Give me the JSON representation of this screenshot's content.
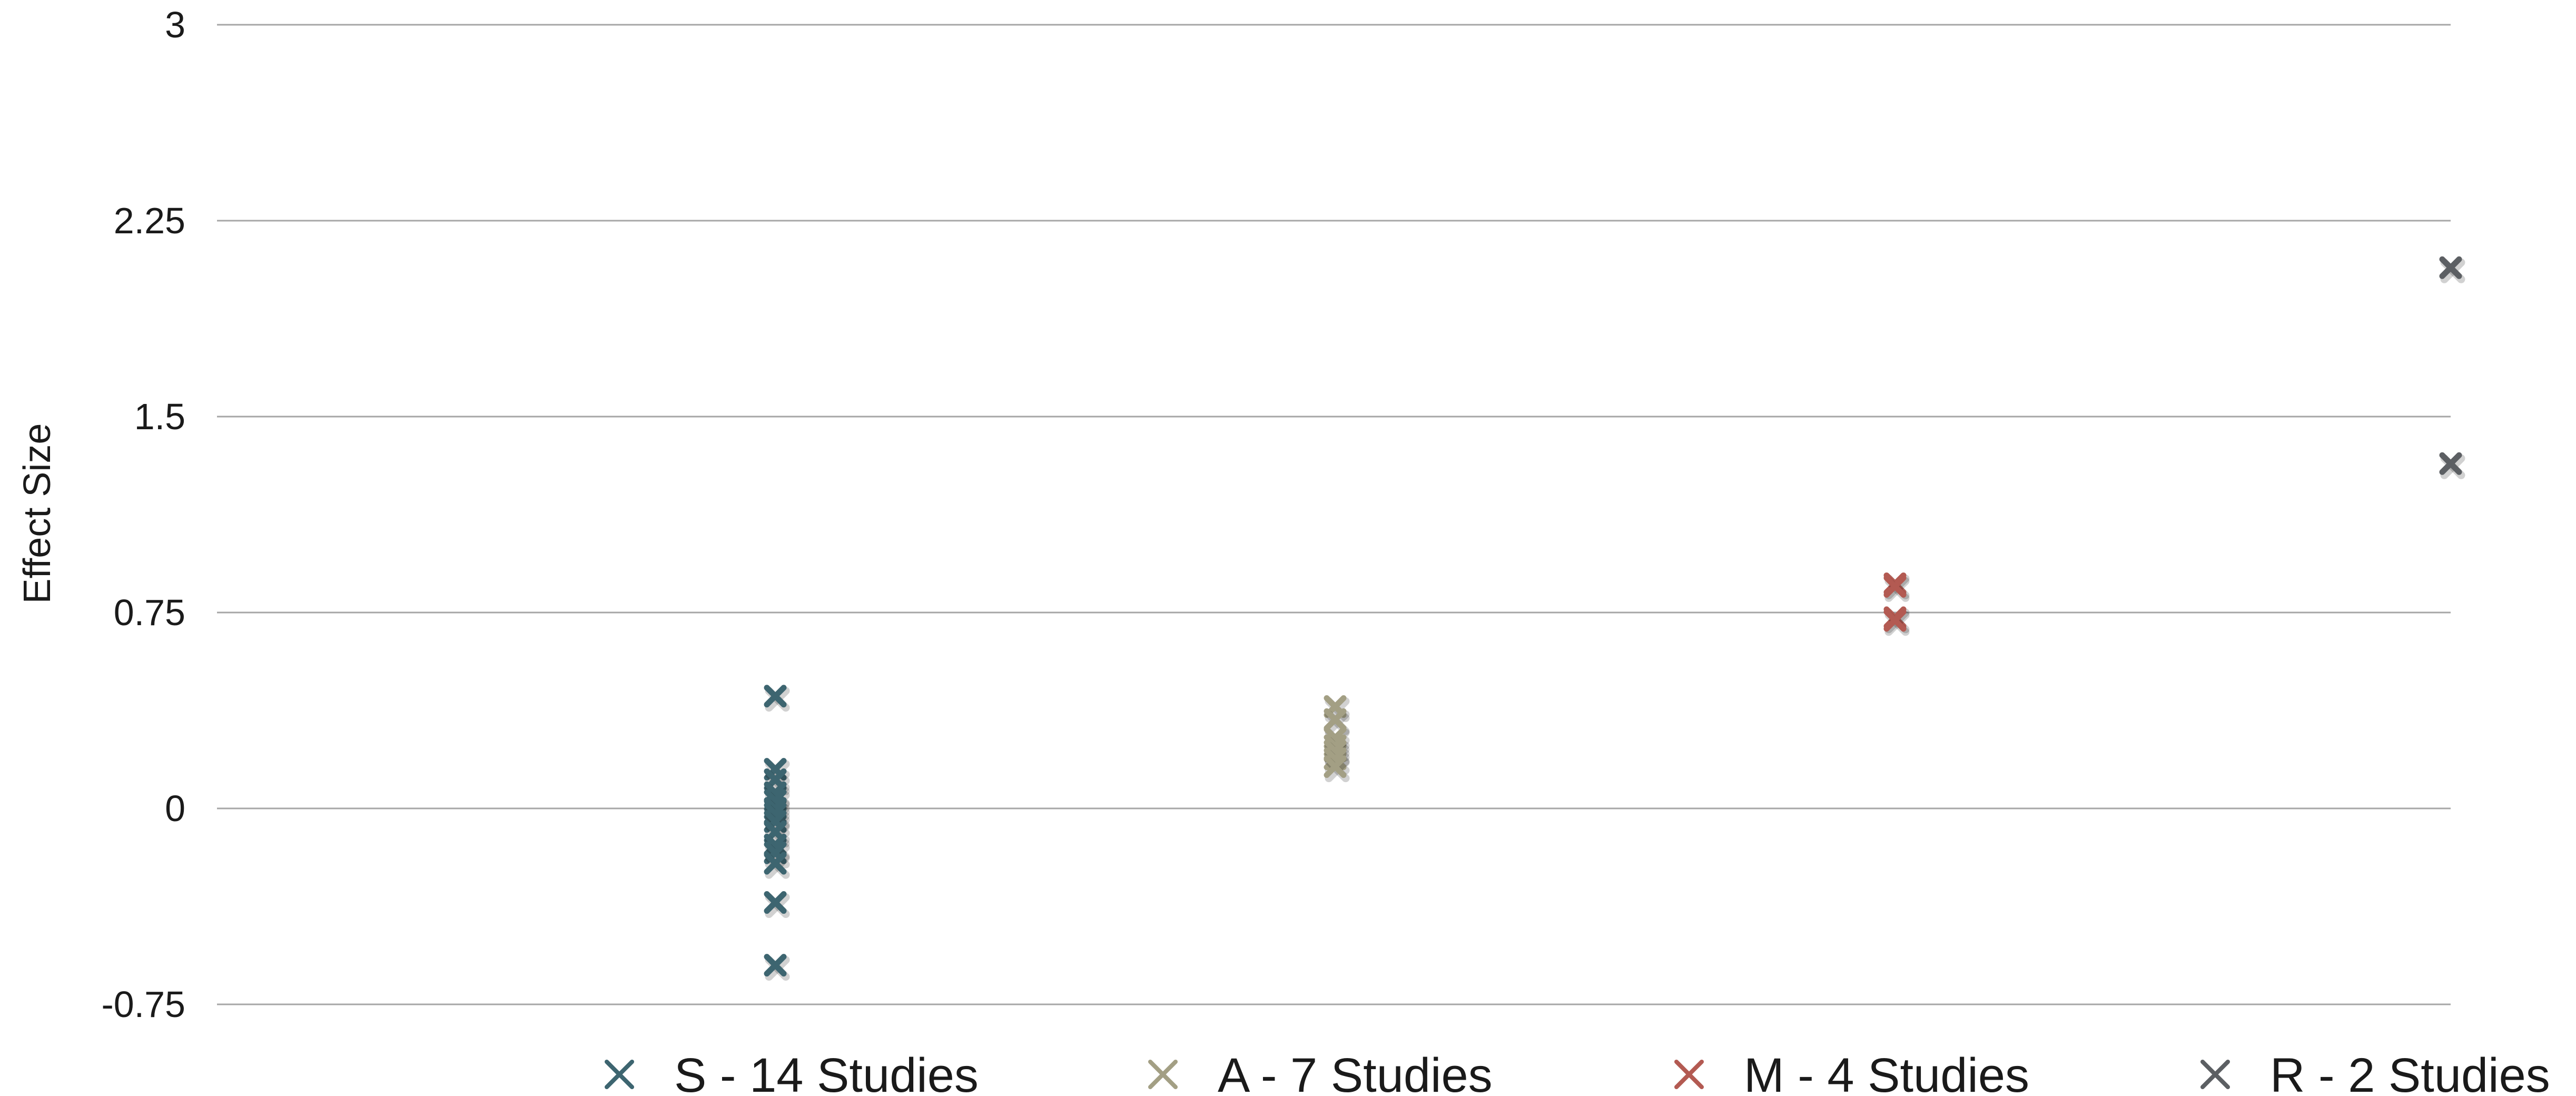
{
  "chart_data": {
    "type": "scatter",
    "title": "",
    "xlabel": "",
    "ylabel": "Effect Size",
    "ylim": [
      -0.75,
      3
    ],
    "yticks": [
      "3",
      "2.25",
      "1.5",
      "0.75",
      "0",
      "-0.75"
    ],
    "grid": true,
    "legend_position": "bottom",
    "marker": "x",
    "series": [
      {
        "name": "S - 14 Studies",
        "color": "#3d6570",
        "x": [
          1,
          1,
          1,
          1,
          1,
          1,
          1,
          1,
          1,
          1,
          1,
          1,
          1,
          1
        ],
        "values": [
          0.43,
          0.15,
          0.11,
          0.06,
          0.03,
          0.0,
          -0.02,
          -0.05,
          -0.09,
          -0.14,
          -0.17,
          -0.21,
          -0.36,
          -0.6
        ]
      },
      {
        "name": "A - 7 Studies",
        "color": "#a39f84",
        "x": [
          2,
          2,
          2,
          2,
          2,
          2,
          2
        ],
        "values": [
          0.39,
          0.34,
          0.27,
          0.24,
          0.22,
          0.19,
          0.16
        ]
      },
      {
        "name": "M - 4 Studies",
        "color": "#b35a52",
        "x": [
          3,
          3,
          3,
          3
        ],
        "values": [
          0.86,
          0.85,
          0.73,
          0.72
        ]
      },
      {
        "name": "R - 2 Studies",
        "color": "#5c5f63",
        "x": [
          4,
          4
        ],
        "values": [
          2.07,
          1.32
        ]
      }
    ]
  }
}
